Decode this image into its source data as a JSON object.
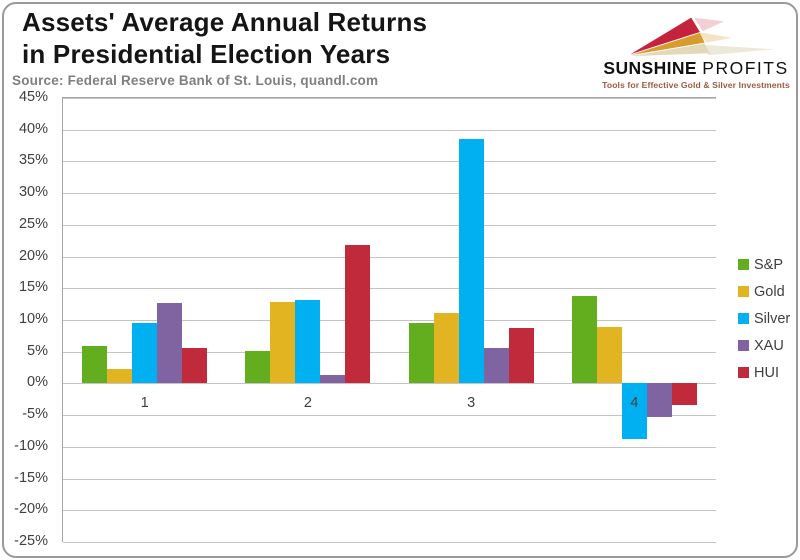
{
  "header": {
    "title_line1": "Assets' Average Annual Returns",
    "title_line2": "in Presidential Election Years",
    "source": "Source: Federal Reserve Bank of St. Louis, quandl.com"
  },
  "logo": {
    "brand_primary": "SUNSHINE",
    "brand_secondary": "PROFITS",
    "tagline": "Tools for Effective Gold & Silver Investments",
    "arrow_red": "#c5233b",
    "arrow_gold": "#d89b2e",
    "arrow_beige": "#e3d9b8"
  },
  "chart_data": {
    "type": "bar",
    "title": "Assets' Average Annual Returns in Presidential Election Years",
    "categories": [
      "1",
      "2",
      "3",
      "4"
    ],
    "series": [
      {
        "name": "S&P",
        "color": "#63ae1f",
        "values": [
          5.9,
          5.1,
          9.5,
          13.8
        ]
      },
      {
        "name": "Gold",
        "color": "#e2b422",
        "values": [
          2.2,
          12.8,
          11.1,
          8.9
        ]
      },
      {
        "name": "Silver",
        "color": "#00b0f0",
        "values": [
          9.5,
          13.2,
          38.6,
          -8.7
        ]
      },
      {
        "name": "XAU",
        "color": "#8064a2",
        "values": [
          12.7,
          1.3,
          5.6,
          -5.3
        ]
      },
      {
        "name": "HUI",
        "color": "#c12a3a",
        "values": [
          5.6,
          21.8,
          8.7,
          -3.4
        ]
      }
    ],
    "ylim": [
      -25,
      45
    ],
    "ytick_step": 5,
    "ytick_suffix": "%",
    "xlabel": "",
    "ylabel": "",
    "grid": true,
    "legend_position": "right"
  }
}
